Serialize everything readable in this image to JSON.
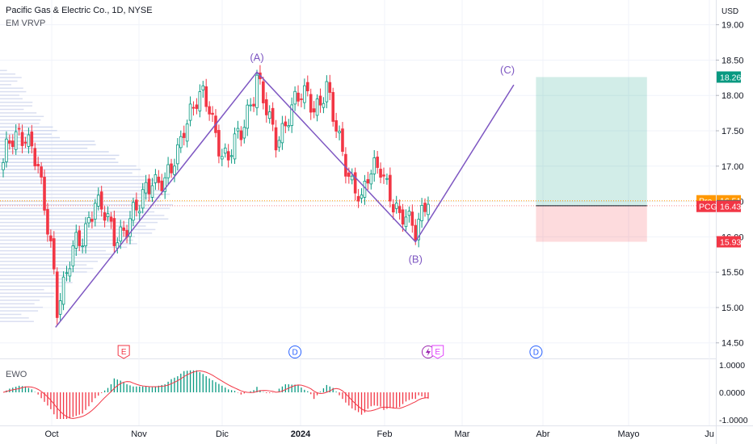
{
  "header": {
    "title": "Pacific Gas & Electric Co., 1D, NYSE",
    "indicator": "EM VRVP",
    "currency": "USD",
    "oscillator_label": "EWO"
  },
  "chart_data": {
    "type": "candlestick",
    "symbol": "PCG",
    "y_ticks": [
      "19.00",
      "18.50",
      "18.00",
      "17.50",
      "17.00",
      "16.50",
      "16.00",
      "15.50",
      "15.00",
      "14.50"
    ],
    "ylim": [
      14.28,
      19.35
    ],
    "x_ticks": [
      "Oct",
      "Nov",
      "Dic",
      "2024",
      "Feb",
      "Mar",
      "Abr",
      "Mayo",
      "Ju"
    ],
    "price_badges": [
      {
        "label": "18.26",
        "value": 18.26,
        "color": "#089981"
      },
      {
        "label": "16.51",
        "prefix": "Pre",
        "value": 16.51,
        "color": "#ff9800"
      },
      {
        "label": "16.44",
        "value": 16.44,
        "color": "#5d606b"
      },
      {
        "label": "16.43",
        "prefix": "PCG",
        "value": 16.43,
        "color": "#f23645"
      },
      {
        "label": "15.93",
        "value": 15.93,
        "color": "#f23645"
      }
    ],
    "wave_labels": [
      {
        "label": "(A)",
        "idx": 80,
        "value": 18.33
      },
      {
        "label": "(B)",
        "idx": 130,
        "value": 15.93
      },
      {
        "label": "(C)",
        "idx": 159,
        "value": 18.15
      }
    ],
    "wave_points": [
      {
        "idx": 16.5,
        "value": 14.72
      },
      {
        "idx": 80,
        "value": 18.33
      },
      {
        "idx": 130,
        "value": 15.93
      },
      {
        "idx": 161,
        "value": 18.15
      }
    ],
    "position": {
      "entry": 16.44,
      "target": 18.26,
      "stop": 15.93,
      "start_idx": 168,
      "end_idx": 203
    },
    "events": [
      {
        "type": "E",
        "idx": 38
      },
      {
        "type": "D",
        "idx": 92
      },
      {
        "type": "split",
        "idx": 134
      },
      {
        "type": "E",
        "idx": 137
      },
      {
        "type": "D",
        "idx": 168
      }
    ],
    "ewo": {
      "ylim": [
        -1.05,
        1.05
      ],
      "ticks": [
        "1.0000",
        "0.0000",
        "-1.0000"
      ]
    },
    "grid": true,
    "first_bar_value": 17.05
  }
}
